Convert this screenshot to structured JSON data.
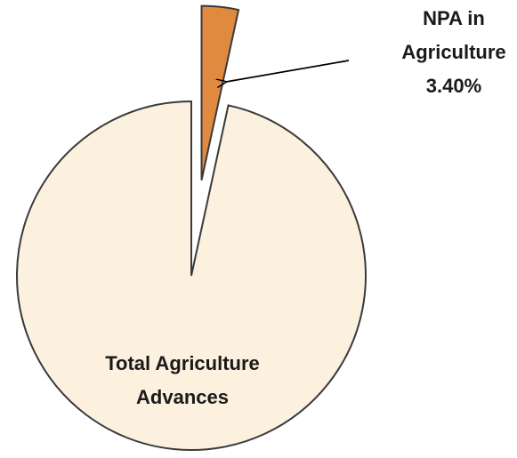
{
  "chart_data": {
    "type": "pie",
    "categories": [
      "NPA in Agriculture",
      "Total Agriculture Advances"
    ],
    "values": [
      3.4,
      96.6
    ],
    "value_labels": [
      "3.40%",
      null
    ],
    "colors": [
      "#e08a3f",
      "#fcf0df"
    ],
    "exploded": [
      true,
      false
    ]
  }
}
